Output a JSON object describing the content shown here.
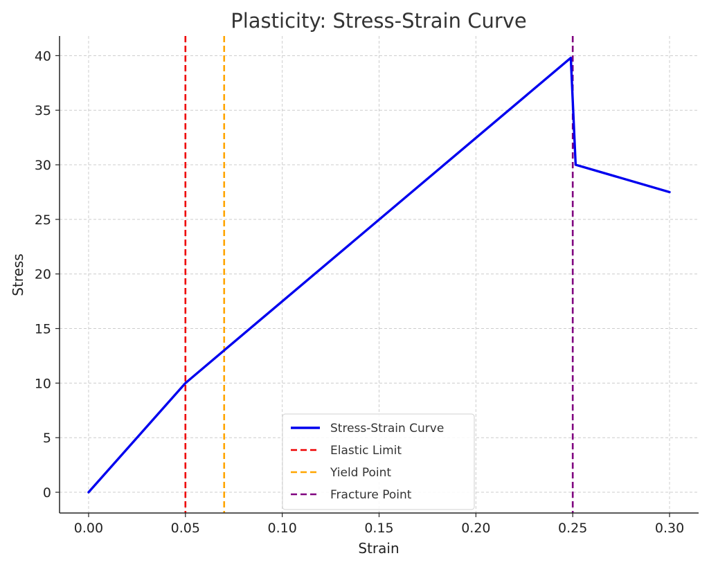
{
  "chart_data": {
    "type": "line",
    "title": "Plasticity: Stress-Strain Curve",
    "xlabel": "Strain",
    "ylabel": "Stress",
    "xlim": [
      -0.015,
      0.315
    ],
    "ylim": [
      -1.9,
      41.8
    ],
    "xticks": [
      0.0,
      0.05,
      0.1,
      0.15,
      0.2,
      0.25,
      0.3
    ],
    "xtick_labels": [
      "0.00",
      "0.05",
      "0.10",
      "0.15",
      "0.20",
      "0.25",
      "0.30"
    ],
    "yticks": [
      0,
      5,
      10,
      15,
      20,
      25,
      30,
      35,
      40
    ],
    "ytick_labels": [
      "0",
      "5",
      "10",
      "15",
      "20",
      "25",
      "30",
      "35",
      "40"
    ],
    "grid": true,
    "legend_position": "lower-center",
    "series": [
      {
        "name": "Stress-Strain Curve",
        "kind": "line",
        "color": "#0000ee",
        "x": [
          0.0,
          0.05,
          0.07,
          0.249,
          0.2515,
          0.3
        ],
        "y": [
          0,
          10,
          13.0,
          39.8,
          30.0,
          27.5
        ]
      }
    ],
    "vlines": [
      {
        "name": "Elastic Limit",
        "x": 0.05,
        "color": "#ee0000"
      },
      {
        "name": "Yield Point",
        "x": 0.07,
        "color": "#ffa500"
      },
      {
        "name": "Fracture Point",
        "x": 0.25,
        "color": "#800080"
      }
    ]
  }
}
